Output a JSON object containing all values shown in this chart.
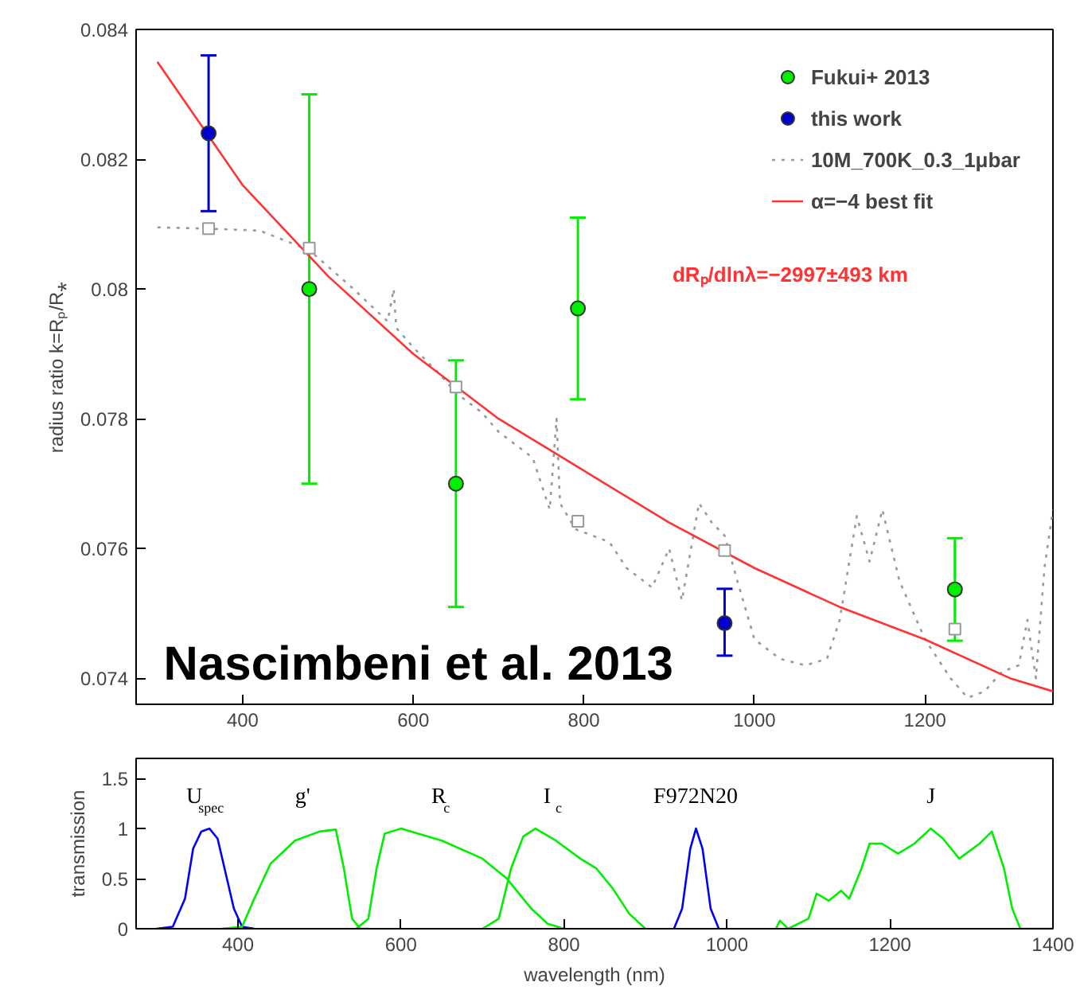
{
  "chart_data": [
    {
      "type": "scatter",
      "xlim": [
        275,
        1350
      ],
      "ylim": [
        0.0736,
        0.084
      ],
      "xticks": [
        400,
        600,
        800,
        1000,
        1200
      ],
      "yticks": [
        0.074,
        0.076,
        0.078,
        0.08,
        0.082,
        0.084
      ],
      "ylabel": "radius ratio k=Rₚ/R⁎",
      "legend": "top right",
      "grid": false,
      "series": [
        {
          "name": "Fukui+ 2013",
          "type": "scatter",
          "marker": "circle",
          "color": "#00ee00",
          "x": [
            478,
            650,
            793,
            1235
          ],
          "values": [
            0.08,
            0.077,
            0.0797,
            0.07537
          ],
          "errors": [
            [
              0.077,
              0.083
            ],
            [
              0.0751,
              0.0789
            ],
            [
              0.0783,
              0.0811
            ],
            [
              0.07458,
              0.07616
            ]
          ]
        },
        {
          "name": "this work",
          "type": "scatter",
          "marker": "circle",
          "color": "#0000cc",
          "x": [
            360,
            965
          ],
          "values": [
            0.0824,
            0.07485
          ],
          "errors": [
            [
              0.0812,
              0.0836
            ],
            [
              0.07435,
              0.07538
            ]
          ]
        },
        {
          "name": "10M_700K_0.3_1μbar",
          "type": "line",
          "marker": "none",
          "line_style": "dotted",
          "color": "#999999",
          "x": [
            300,
            360,
            420,
            478,
            530,
            570,
            577,
            580,
            600,
            630,
            650,
            680,
            700,
            720,
            740,
            760,
            768,
            772,
            790,
            810,
            830,
            850,
            880,
            900,
            915,
            935,
            950,
            965,
            980,
            1000,
            1030,
            1060,
            1085,
            1100,
            1120,
            1135,
            1150,
            1170,
            1200,
            1230,
            1250,
            1270,
            1290,
            1310,
            1320,
            1330,
            1340,
            1350
          ],
          "values": [
            0.08095,
            0.08093,
            0.0809,
            0.0806,
            0.08,
            0.0795,
            0.08,
            0.0794,
            0.0791,
            0.0787,
            0.0784,
            0.0781,
            0.0778,
            0.0776,
            0.0774,
            0.0766,
            0.078,
            0.0767,
            0.0763,
            0.0762,
            0.0761,
            0.0757,
            0.0754,
            0.076,
            0.0752,
            0.0767,
            0.0764,
            0.0762,
            0.0755,
            0.0746,
            0.0743,
            0.0742,
            0.0743,
            0.0749,
            0.0765,
            0.0758,
            0.0766,
            0.0755,
            0.0746,
            0.074,
            0.0737,
            0.0738,
            0.0741,
            0.0742,
            0.0749,
            0.074,
            0.0757,
            0.0766
          ]
        },
        {
          "name": "α=−4 best fit",
          "type": "line",
          "marker": "none",
          "line_style": "solid",
          "color": "#ff3333",
          "x": [
            300,
            400,
            500,
            600,
            700,
            800,
            900,
            1000,
            1100,
            1200,
            1300,
            1350
          ],
          "values": [
            0.0835,
            0.0816,
            0.0802,
            0.079,
            0.078,
            0.0772,
            0.0764,
            0.0757,
            0.0751,
            0.0746,
            0.074,
            0.0738
          ]
        },
        {
          "type": "scatter",
          "marker": "square",
          "color": "#999999",
          "x": [
            360,
            478,
            650,
            793,
            965,
            1235
          ],
          "values": [
            0.08093,
            0.08063,
            0.07849,
            0.07642,
            0.07597,
            0.07476
          ]
        }
      ],
      "annotations": [
        "dRₚ/dlnλ=−2997±493 km",
        "Nascimbeni et al. 2013"
      ]
    },
    {
      "type": "line",
      "xlim": [
        275,
        1400
      ],
      "ylim": [
        0,
        1.7
      ],
      "xticks": [
        400,
        600,
        800,
        1000,
        1200,
        1400
      ],
      "yticks": [
        0,
        0.5,
        1,
        1.5
      ],
      "xlabel": "wavelength (nm)",
      "ylabel": "transmission",
      "grid": false,
      "legend": false,
      "series": [
        {
          "color": "#0000ff",
          "x": [
            300,
            320,
            335,
            345,
            355,
            365,
            375,
            385,
            395,
            405,
            420
          ],
          "values": [
            0,
            0.02,
            0.3,
            0.8,
            0.97,
            1.0,
            0.9,
            0.55,
            0.2,
            0.02,
            0
          ]
        },
        {
          "color": "#00ee00",
          "x": [
            380,
            405,
            420,
            440,
            470,
            500,
            520,
            530,
            540,
            550,
            560
          ],
          "values": [
            0,
            0.02,
            0.3,
            0.65,
            0.88,
            0.97,
            0.99,
            0.6,
            0.1,
            0,
            0
          ]
        },
        {
          "color": "#00ee00",
          "x": [
            545,
            560,
            570,
            580,
            600,
            650,
            700,
            730,
            760,
            780,
            800
          ],
          "values": [
            0,
            0.1,
            0.6,
            0.95,
            1.0,
            0.88,
            0.7,
            0.5,
            0.2,
            0.05,
            0
          ]
        },
        {
          "color": "#00ee00",
          "x": [
            700,
            720,
            735,
            750,
            765,
            790,
            820,
            840,
            860,
            880,
            900
          ],
          "values": [
            0,
            0.1,
            0.6,
            0.92,
            1.0,
            0.88,
            0.7,
            0.6,
            0.4,
            0.15,
            0
          ]
        },
        {
          "color": "#0000ff",
          "x": [
            935,
            945,
            955,
            962,
            970,
            980,
            990
          ],
          "values": [
            0,
            0.2,
            0.8,
            1.0,
            0.8,
            0.2,
            0
          ]
        },
        {
          "color": "#00ee00",
          "x": [
            1060,
            1065,
            1075,
            1100,
            1110,
            1125,
            1140,
            1150,
            1165,
            1175,
            1190,
            1210,
            1230,
            1250,
            1265,
            1285,
            1310,
            1325,
            1340,
            1350,
            1360,
            1400
          ],
          "values": [
            0,
            0.08,
            0,
            0.1,
            0.35,
            0.28,
            0.38,
            0.3,
            0.6,
            0.85,
            0.85,
            0.75,
            0.85,
            1.0,
            0.9,
            0.7,
            0.85,
            0.97,
            0.6,
            0.2,
            0,
            0
          ]
        }
      ],
      "annotations": [
        "U$_{spec}$",
        "g'",
        "R$_{c}$",
        "I$_{c}$",
        "F972N20",
        "J"
      ]
    }
  ]
}
